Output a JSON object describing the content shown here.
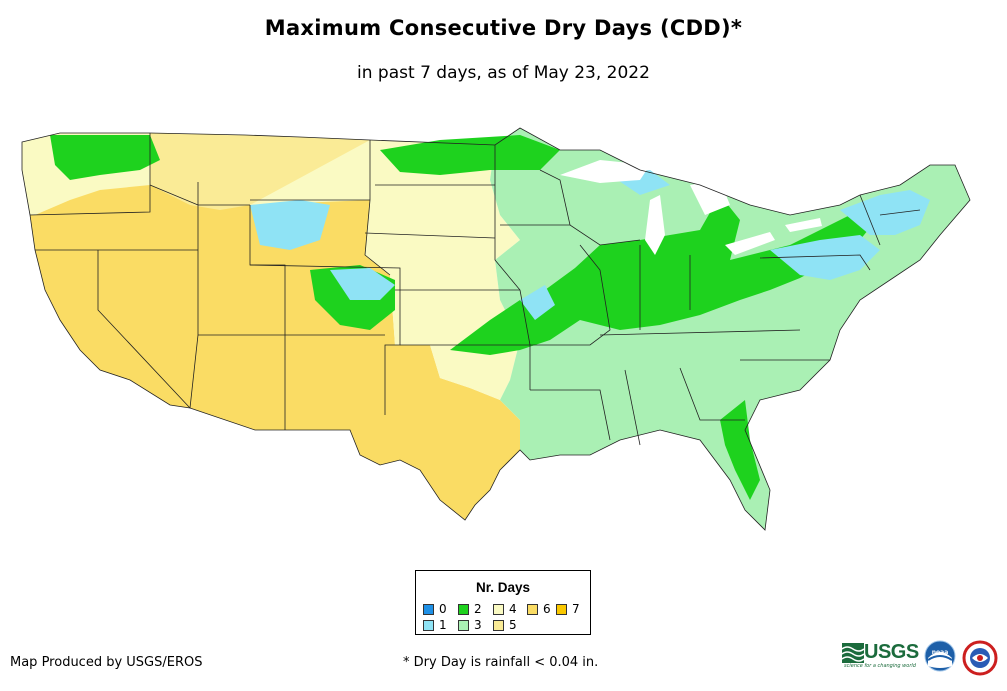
{
  "title": "Maximum Consecutive Dry Days (CDD)*",
  "subtitle": "in past 7 days, as of May 23, 2022",
  "legend": {
    "title": "Nr. Days",
    "items": [
      {
        "label": "0",
        "color": "#1e90e6"
      },
      {
        "label": "1",
        "color": "#8fe3f5"
      },
      {
        "label": "2",
        "color": "#1ed21e"
      },
      {
        "label": "3",
        "color": "#aaf0b4"
      },
      {
        "label": "4",
        "color": "#fafac3"
      },
      {
        "label": "5",
        "color": "#faeb96"
      },
      {
        "label": "6",
        "color": "#fadc64"
      },
      {
        "label": "7",
        "color": "#fac800"
      }
    ]
  },
  "footer": {
    "producer": "Map Produced by USGS/EROS",
    "note": "* Dry Day is rainfall < 0.04 in."
  },
  "logos": {
    "usgs": {
      "name": "usgs-logo",
      "text": "USGS",
      "tagline": "science for a changing world"
    },
    "noaa": {
      "name": "noaa-logo",
      "text": "noaa"
    },
    "nws": {
      "name": "nws-logo"
    }
  }
}
